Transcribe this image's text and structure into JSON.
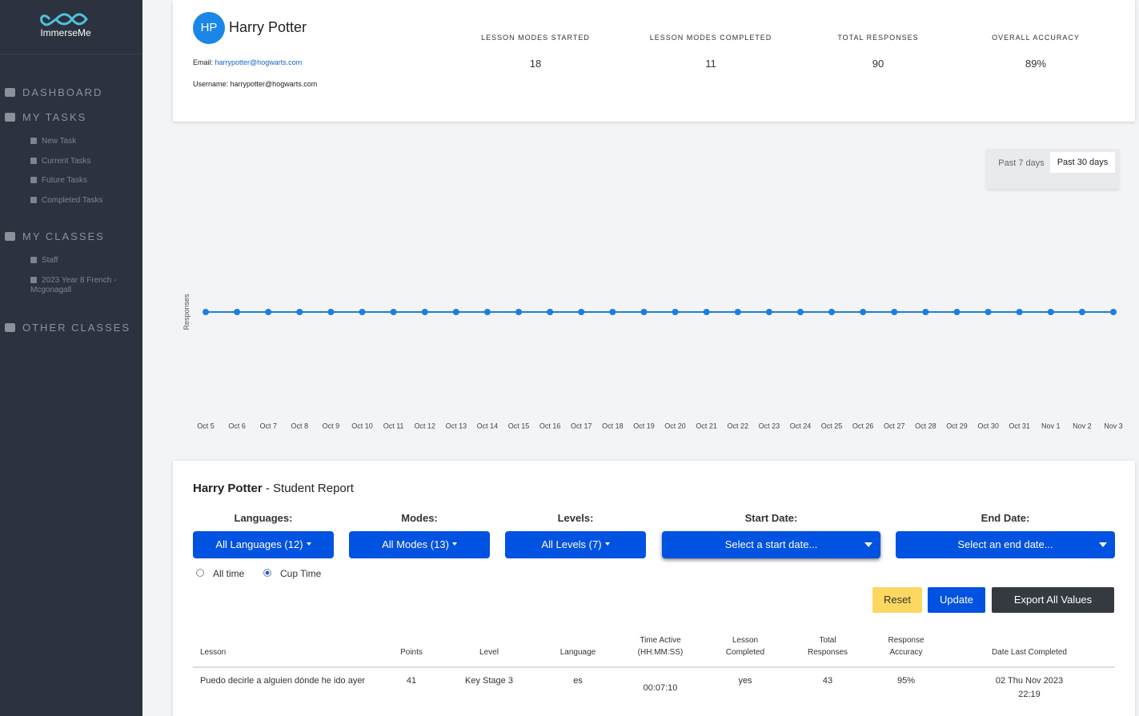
{
  "sidebar": {
    "brand": "ImmerseMe",
    "sections": [
      {
        "label": "DASHBOARD",
        "items": []
      },
      {
        "label": "MY TASKS",
        "items": [
          "New Task",
          "Current Tasks",
          "Future Tasks",
          "Completed Tasks"
        ]
      },
      {
        "label": "MY CLASSES",
        "items": [
          "Staff",
          "2023 Year 8 French - Mcgonagall"
        ]
      },
      {
        "label": "OTHER CLASSES",
        "items": []
      }
    ]
  },
  "profile": {
    "initials": "HP",
    "name": "Harry Potter",
    "email_label": "Email:",
    "email": "harrypotter@hogwarts.com",
    "username_label": "Username:",
    "username": "harrypotter@hogwarts.com",
    "stats": [
      {
        "label": "LESSON MODES STARTED",
        "value": "18"
      },
      {
        "label": "LESSON MODES COMPLETED",
        "value": "11"
      },
      {
        "label": "TOTAL RESPONSES",
        "value": "90"
      },
      {
        "label": "OVERALL ACCURACY",
        "value": "89%"
      }
    ]
  },
  "range_buttons": [
    "Past 7 days",
    "Past 30 days"
  ],
  "chart_data": {
    "type": "line",
    "y_label": "Responses",
    "color": "#1a7fe0",
    "categories": [
      "Oct 5",
      "Oct 6",
      "Oct 7",
      "Oct 8",
      "Oct 9",
      "Oct 10",
      "Oct 11",
      "Oct 12",
      "Oct 13",
      "Oct 14",
      "Oct 15",
      "Oct 16",
      "Oct 17",
      "Oct 18",
      "Oct 19",
      "Oct 20",
      "Oct 21",
      "Oct 22",
      "Oct 23",
      "Oct 24",
      "Oct 25",
      "Oct 26",
      "Oct 27",
      "Oct 28",
      "Oct 29",
      "Oct 30",
      "Oct 31",
      "Nov 1",
      "Nov 2",
      "Nov 3"
    ],
    "values": [
      0,
      0,
      0,
      0,
      0,
      0,
      0,
      0,
      0,
      0,
      0,
      0,
      0,
      0,
      0,
      0,
      0,
      0,
      0,
      0,
      0,
      0,
      0,
      0,
      0,
      0,
      0,
      0,
      0,
      0
    ],
    "ylim": [
      -1,
      1
    ]
  },
  "report": {
    "student": "Harry Potter",
    "title": "- Student Report",
    "filters": [
      {
        "label": "Languages:",
        "value": "All Languages (12)"
      },
      {
        "label": "Modes:",
        "value": "All Modes (13)"
      },
      {
        "label": "Levels:",
        "value": "All Levels (7)"
      },
      {
        "label": "Start Date:",
        "value": "Select a start date..."
      },
      {
        "label": "End Date:",
        "value": "Select an end date..."
      }
    ],
    "radios": [
      "All time",
      "Cup Time"
    ],
    "buttons": [
      "Reset",
      "Update",
      "Export All Values"
    ],
    "table": {
      "columns": [
        "Lesson",
        "Points",
        "Level",
        "Language",
        "Time Active (HH:MM:SS)",
        "Lesson Completed",
        "Total Responses",
        "Response Accuracy",
        "Date Last Completed"
      ],
      "rows": [
        [
          "Puedo decirle a alguien dónde he ido ayer",
          "41",
          "Key Stage 3",
          "es",
          "00:07:10",
          "yes",
          "43",
          "95%",
          "02 Thu Nov 2023 22:19"
        ]
      ]
    }
  }
}
